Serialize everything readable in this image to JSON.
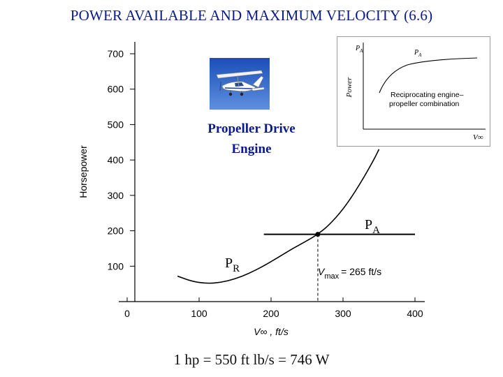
{
  "title": "POWER AVAILABLE AND MAXIMUM VELOCITY (6.6)",
  "footer": "1 hp = 550 ft lb/s = 746 W",
  "callout": {
    "engine_line1": "Propeller Drive",
    "engine_line2": "Engine",
    "pa_label": "P",
    "pa_sub": "A",
    "pr_label": "P",
    "pr_sub": "R",
    "vmax_text": "V",
    "vmax_sub": "max",
    "vmax_value": "= 265 ft/s"
  },
  "inset": {
    "y_label": "Power",
    "pa_top": "P",
    "pa_top_sub": "A",
    "pa_curve": "P",
    "pa_curve_sub": "A",
    "desc_line1": "Reciprocating engine–",
    "desc_line2": "propeller combination",
    "x_label": "V∞"
  },
  "colors": {
    "title": "#0a1a8c",
    "curve": "#000000",
    "engine_label": "#0a1a8c"
  },
  "chart_data": {
    "type": "line",
    "xlabel": "V∞ , ft/s",
    "ylabel": "Horsepower",
    "xlim": [
      0,
      400
    ],
    "ylim": [
      0,
      700
    ],
    "x_ticks": [
      0,
      100,
      200,
      300,
      400
    ],
    "y_ticks": [
      100,
      200,
      300,
      400,
      500,
      600,
      700
    ],
    "grid": false,
    "series": [
      {
        "name": "P_R",
        "x": [
          70,
          90,
          110,
          130,
          150,
          170,
          190,
          210,
          230,
          250,
          265,
          280,
          300,
          320,
          340,
          350
        ],
        "y": [
          72,
          57,
          51,
          54,
          64,
          80,
          101,
          125,
          150,
          172,
          190,
          215,
          260,
          320,
          390,
          430
        ]
      },
      {
        "name": "P_A",
        "x": [
          190,
          400
        ],
        "y": [
          190,
          190
        ]
      }
    ],
    "intersection": {
      "x": 265,
      "y": 190
    }
  }
}
